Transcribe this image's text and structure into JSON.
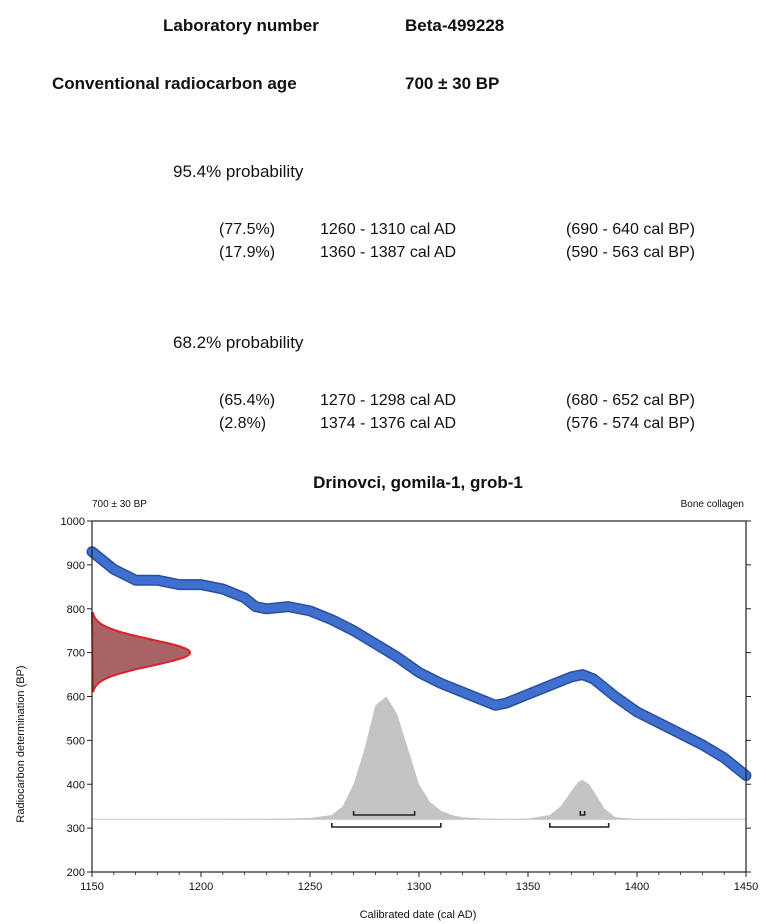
{
  "header": {
    "lab_label": "Laboratory number",
    "lab_value": "Beta-499228",
    "age_label": "Conventional radiocarbon age",
    "age_value": "700 ± 30 BP"
  },
  "prob95": {
    "title": "95.4% probability",
    "rows": [
      {
        "pct": "(77.5%)",
        "ad": "1260 - 1310 cal  AD",
        "bp": "(690 - 640 cal  BP)"
      },
      {
        "pct": "(17.9%)",
        "ad": "1360 - 1387 cal  AD",
        "bp": "(590 - 563 cal  BP)"
      }
    ]
  },
  "prob68": {
    "title": "68.2% probability",
    "rows": [
      {
        "pct": "(65.4%)",
        "ad": "1270 - 1298 cal  AD",
        "bp": "(680 - 652 cal  BP)"
      },
      {
        "pct": "(2.8%)",
        "ad": "1374 - 1376 cal  AD",
        "bp": "(576 - 574 cal  BP)"
      }
    ]
  },
  "chart_data": {
    "type": "area",
    "title": "Drinovci, gomila-1, grob-1",
    "top_left_note": "700 ± 30 BP",
    "top_right_note": "Bone collagen",
    "xlabel": "Calibrated date (cal AD)",
    "ylabel": "Radiocarbon determination (BP)",
    "xlim": [
      1150,
      1450
    ],
    "ylim": [
      200,
      1000
    ],
    "x_ticks": [
      1150,
      1200,
      1250,
      1300,
      1350,
      1400,
      1450
    ],
    "y_ticks": [
      200,
      300,
      400,
      500,
      600,
      700,
      800,
      900,
      1000
    ],
    "colors": {
      "curve": "#3f6fcf",
      "curve_edge": "#2a4fa0",
      "measurement": "#e0202a",
      "measurement_fill": "#a86464",
      "calibrated": "#c4c4c4"
    },
    "series": [
      {
        "name": "calibration curve",
        "x": [
          1150,
          1160,
          1170,
          1180,
          1190,
          1200,
          1210,
          1220,
          1225,
          1230,
          1240,
          1250,
          1260,
          1270,
          1280,
          1290,
          1300,
          1310,
          1320,
          1330,
          1335,
          1340,
          1350,
          1360,
          1370,
          1375,
          1380,
          1390,
          1400,
          1410,
          1420,
          1430,
          1440,
          1450
        ],
        "y": [
          930,
          890,
          865,
          865,
          855,
          855,
          845,
          825,
          805,
          800,
          805,
          795,
          775,
          750,
          720,
          690,
          655,
          630,
          610,
          590,
          580,
          585,
          605,
          625,
          645,
          650,
          640,
          600,
          565,
          540,
          515,
          490,
          460,
          420
        ]
      }
    ],
    "measurement": {
      "mean": 700,
      "sigma": 30
    },
    "calibrated_distribution": {
      "baseline": 320,
      "x": [
        1150,
        1200,
        1220,
        1240,
        1250,
        1260,
        1265,
        1270,
        1275,
        1280,
        1285,
        1290,
        1295,
        1300,
        1305,
        1310,
        1315,
        1320,
        1330,
        1340,
        1350,
        1360,
        1365,
        1370,
        1373,
        1375,
        1378,
        1380,
        1385,
        1390,
        1400,
        1450
      ],
      "y": [
        320,
        320,
        321,
        322,
        323,
        330,
        350,
        400,
        480,
        580,
        600,
        560,
        480,
        400,
        360,
        340,
        330,
        325,
        322,
        321,
        322,
        330,
        350,
        385,
        405,
        410,
        400,
        385,
        345,
        325,
        321,
        320
      ]
    },
    "ranges_95": [
      [
        1260,
        1310
      ],
      [
        1360,
        1387
      ]
    ],
    "ranges_68": [
      [
        1270,
        1298
      ],
      [
        1374,
        1376
      ]
    ]
  }
}
